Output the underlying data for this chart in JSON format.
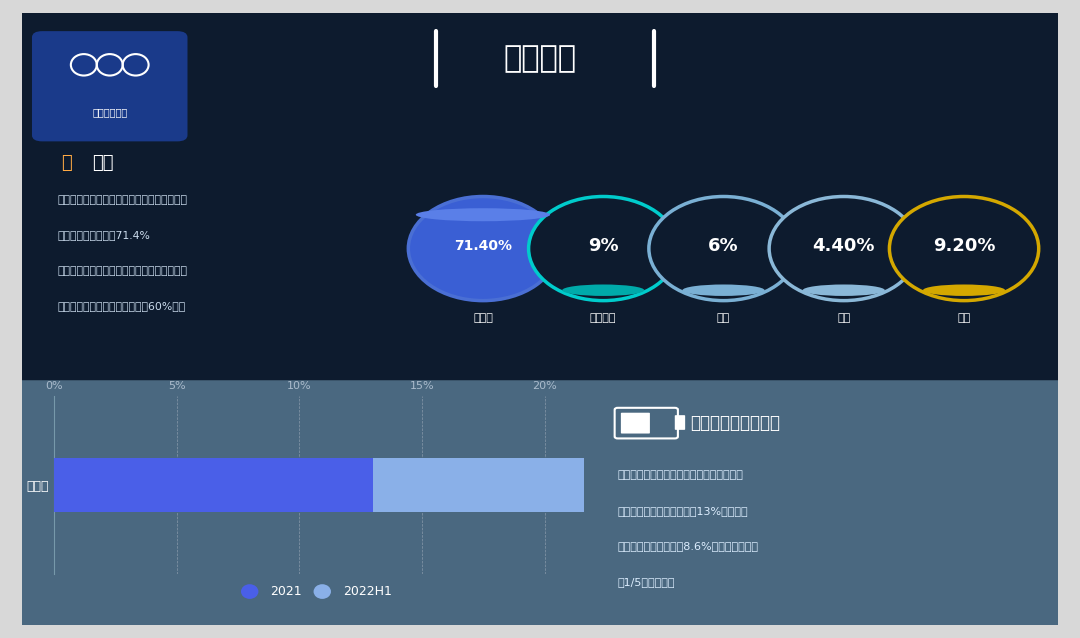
{
  "title": "美国市场",
  "bg_color_top": "#0d1b2e",
  "bottom_bg": "#4a6880",
  "outer_bg": "#d8d8d8",
  "progress_title": "进度",
  "progress_text1": "目前特斯拉在美国市场一骑绝尘，在电动汽车",
  "progress_text2": "里面的市场占有率为71.4%",
  "progress_text3": "备注：这个数据在纯电动汽车里面的数据，在",
  "progress_text4": "整个新能源汽车里面数据大约为60%左右",
  "circles": [
    {
      "label": "特斯拉",
      "value": "71.40%",
      "border_color": "#4a6fd4",
      "fill_color": "#3a5fd4",
      "large": true
    },
    {
      "label": "现代起亚",
      "value": "9%",
      "border_color": "#00cccc",
      "fill_color": "#00aaaa",
      "large": false
    },
    {
      "label": "福特",
      "value": "6%",
      "border_color": "#7ab0d4",
      "fill_color": "#7ab0d4",
      "large": false
    },
    {
      "label": "大众",
      "value": "4.40%",
      "border_color": "#8ab8d8",
      "fill_color": "#8ab8d8",
      "large": false
    },
    {
      "label": "其他",
      "value": "9.20%",
      "border_color": "#d4a800",
      "fill_color": "#d4a800",
      "large": false
    }
  ],
  "bar_title": "特斯拉在豪车市占率",
  "bar_label": "特斯拉",
  "bar_2021": 13,
  "bar_2022h1": 21.6,
  "bar_color_2021": "#4a5fe8",
  "bar_color_2022h1": "#8ab0e8",
  "bar_xlim": [
    0,
    22
  ],
  "bar_xticks": [
    0,
    5,
    10,
    15,
    20
  ],
  "bar_xtick_labels": [
    "0%",
    "5%",
    "10%",
    "15%",
    "20%"
  ],
  "bar_desc1": "和燃油车来看，在豪华车里面纯电动汽车推",
  "bar_desc2": "进更快，特斯拉在去年占有13%的市场以",
  "bar_desc3": "后，今年上半年增加了8.6%，目前已经达到",
  "bar_desc4": "了1/5以上的市场",
  "legend_2021": "2021",
  "legend_2022h1": "2022H1",
  "logo_text": "汽车电子设计"
}
